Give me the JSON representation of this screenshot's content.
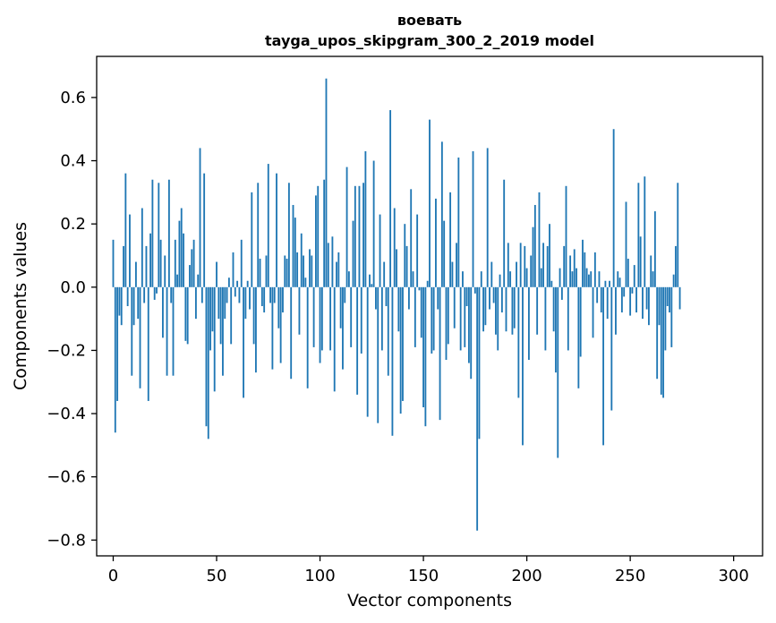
{
  "chart_data": {
    "type": "bar",
    "title": "воевать",
    "subtitle": "tayga_upos_skipgram_300_2_2019 model",
    "xlabel": "Vector components",
    "ylabel": "Components values",
    "xlim": [
      -8,
      314
    ],
    "ylim": [
      -0.85,
      0.73
    ],
    "x_ticks": [
      0,
      50,
      100,
      150,
      200,
      250,
      300
    ],
    "x_tick_labels": [
      "0",
      "50",
      "100",
      "150",
      "200",
      "250",
      "300"
    ],
    "y_ticks": [
      -0.8,
      -0.6,
      -0.4,
      -0.2,
      0.0,
      0.2,
      0.4,
      0.6
    ],
    "y_tick_labels": [
      "−0.8",
      "−0.6",
      "−0.4",
      "−0.2",
      "0.0",
      "0.2",
      "0.4",
      "0.6"
    ],
    "grid": false,
    "bar_color": "#1f77b4",
    "values": [
      0.15,
      -0.46,
      -0.36,
      -0.09,
      -0.12,
      0.13,
      0.36,
      -0.06,
      0.23,
      -0.28,
      -0.12,
      0.08,
      -0.1,
      -0.32,
      0.25,
      -0.05,
      0.13,
      -0.36,
      0.17,
      0.34,
      -0.04,
      -0.02,
      0.33,
      0.15,
      -0.16,
      0.1,
      -0.28,
      0.34,
      -0.05,
      -0.28,
      0.15,
      0.04,
      0.21,
      0.25,
      0.17,
      -0.17,
      -0.18,
      0.07,
      0.12,
      0.15,
      -0.1,
      0.04,
      0.44,
      -0.05,
      0.36,
      -0.44,
      -0.48,
      -0.2,
      -0.14,
      -0.33,
      0.08,
      -0.1,
      -0.18,
      -0.28,
      -0.1,
      -0.05,
      0.03,
      -0.18,
      0.11,
      -0.03,
      0.02,
      -0.05,
      0.15,
      -0.35,
      -0.1,
      0.02,
      -0.07,
      0.3,
      -0.18,
      -0.27,
      0.33,
      0.09,
      -0.06,
      -0.08,
      0.1,
      0.39,
      -0.05,
      -0.26,
      -0.05,
      0.36,
      -0.13,
      -0.24,
      -0.08,
      0.1,
      0.09,
      0.33,
      -0.29,
      0.26,
      0.22,
      0.11,
      -0.15,
      0.17,
      0.1,
      0.03,
      -0.32,
      0.12,
      0.1,
      -0.19,
      0.29,
      0.32,
      -0.24,
      -0.2,
      0.34,
      0.66,
      0.14,
      -0.2,
      0.16,
      -0.33,
      0.08,
      0.11,
      -0.13,
      -0.26,
      -0.05,
      0.38,
      0.05,
      -0.19,
      0.21,
      0.32,
      -0.34,
      0.32,
      -0.21,
      0.33,
      0.43,
      -0.41,
      0.04,
      0.01,
      0.4,
      -0.07,
      -0.43,
      0.23,
      -0.2,
      0.08,
      -0.06,
      -0.28,
      0.56,
      -0.47,
      0.25,
      0.12,
      -0.14,
      -0.4,
      -0.36,
      0.2,
      0.13,
      -0.07,
      0.31,
      0.05,
      -0.19,
      0.23,
      -0.01,
      -0.16,
      -0.38,
      -0.44,
      0.02,
      0.53,
      -0.21,
      -0.2,
      0.28,
      -0.07,
      -0.42,
      0.46,
      0.21,
      -0.23,
      -0.18,
      0.3,
      0.08,
      -0.13,
      0.14,
      0.41,
      -0.2,
      0.05,
      -0.19,
      -0.06,
      -0.24,
      -0.29,
      0.43,
      -0.02,
      -0.77,
      -0.48,
      0.05,
      -0.14,
      -0.12,
      0.44,
      -0.07,
      0.08,
      -0.05,
      -0.15,
      -0.2,
      0.04,
      -0.08,
      0.34,
      -0.14,
      0.14,
      0.05,
      -0.15,
      -0.13,
      0.08,
      -0.35,
      0.14,
      -0.5,
      0.13,
      0.06,
      -0.23,
      0.1,
      0.19,
      0.26,
      -0.15,
      0.3,
      0.06,
      0.14,
      -0.2,
      0.13,
      0.2,
      0.02,
      -0.14,
      -0.27,
      -0.54,
      0.06,
      -0.04,
      0.13,
      0.32,
      -0.2,
      0.1,
      0.05,
      0.12,
      0.06,
      -0.32,
      -0.22,
      0.15,
      0.11,
      0.06,
      0.04,
      0.05,
      -0.16,
      0.11,
      -0.05,
      0.05,
      -0.08,
      -0.5,
      0.02,
      -0.1,
      0.02,
      -0.39,
      0.5,
      -0.15,
      0.05,
      0.03,
      -0.08,
      -0.03,
      0.27,
      0.09,
      -0.09,
      -0.02,
      0.07,
      -0.08,
      0.33,
      0.16,
      -0.1,
      0.35,
      -0.07,
      -0.12,
      0.1,
      0.05,
      0.24,
      -0.29,
      -0.12,
      -0.34,
      -0.35,
      -0.2,
      -0.06,
      -0.08,
      -0.19,
      0.04,
      0.13,
      0.33,
      -0.07
    ]
  }
}
